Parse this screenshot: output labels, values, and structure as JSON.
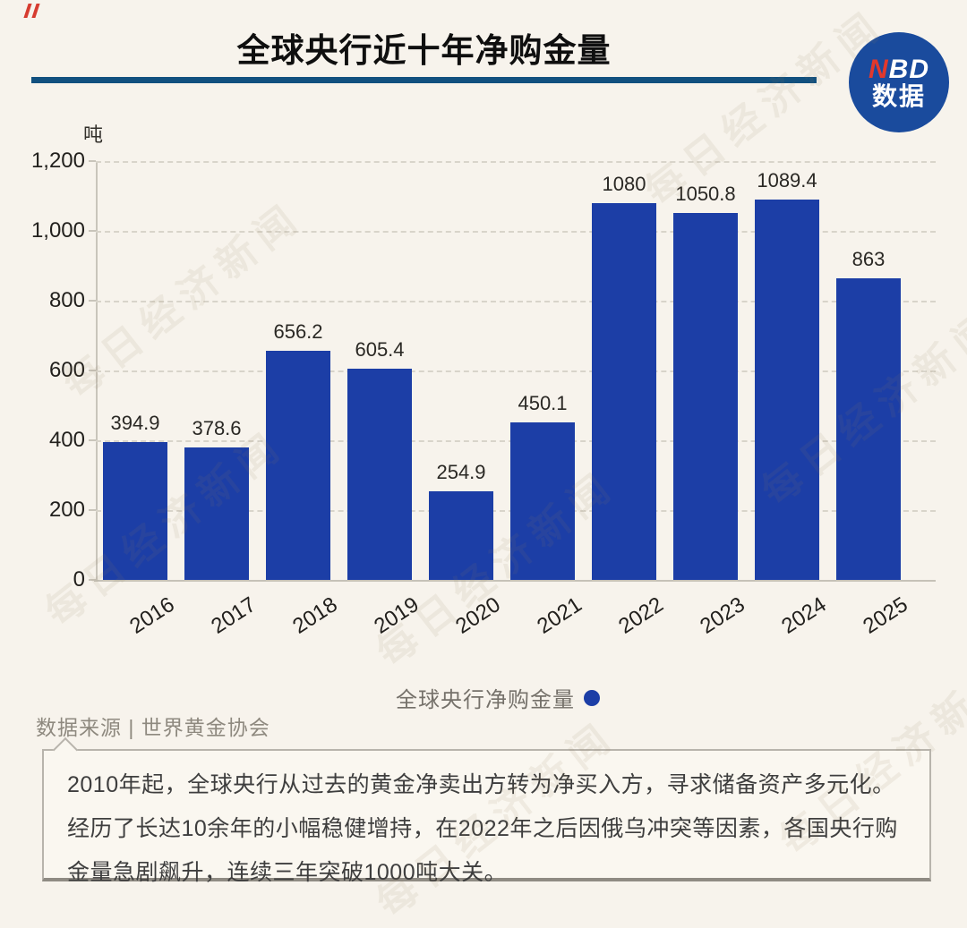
{
  "header": {
    "title": "全球央行近十年净购金量",
    "logo": {
      "n": "N",
      "bd": "BD",
      "sub": "数据"
    }
  },
  "chart_data": {
    "type": "bar",
    "title": "全球央行近十年净购金量",
    "unit_label": "吨",
    "categories": [
      "2016",
      "2017",
      "2018",
      "2019",
      "2020",
      "2021",
      "2022",
      "2023",
      "2024",
      "2025"
    ],
    "values": [
      394.9,
      378.6,
      656.2,
      605.4,
      254.9,
      450.1,
      1080,
      1050.8,
      1089.4,
      863
    ],
    "value_labels": [
      "394.9",
      "378.6",
      "656.2",
      "605.4",
      "254.9",
      "450.1",
      "1080",
      "1050.8",
      "1089.4",
      "863"
    ],
    "xlabel": "",
    "ylabel": "吨",
    "ylim": [
      0,
      1200
    ],
    "yticks": [
      0,
      200,
      400,
      600,
      800,
      1000,
      1200
    ],
    "ytick_labels": [
      "0",
      "200",
      "400",
      "600",
      "800",
      "1,000",
      "1,200"
    ],
    "grid": "horizontal-dashed",
    "legend": {
      "label": "全球央行净购金量",
      "marker": "dot",
      "position": "bottom-center"
    },
    "colors": {
      "bar": "#1c3ea6",
      "legend_dot": "#1c3ea6"
    }
  },
  "source": {
    "text": "数据来源 | 世界黄金协会"
  },
  "note_box": {
    "text": "2010年起，全球央行从过去的黄金净卖出方转为净买入方，寻求储备资产多元化。经历了长达10余年的小幅稳健增持，在2022年之后因俄乌冲突等因素，各国央行购金量急剧飙升，连续三年突破1000吨大关。"
  },
  "watermark": {
    "text": "每日经济新闻"
  },
  "colors": {
    "background": "#f7f3ec",
    "bar_blue": "#1c3ea6",
    "underline_blue": "#11507f",
    "logo_blue": "#1a4b9d",
    "logo_red": "#e2382c"
  }
}
